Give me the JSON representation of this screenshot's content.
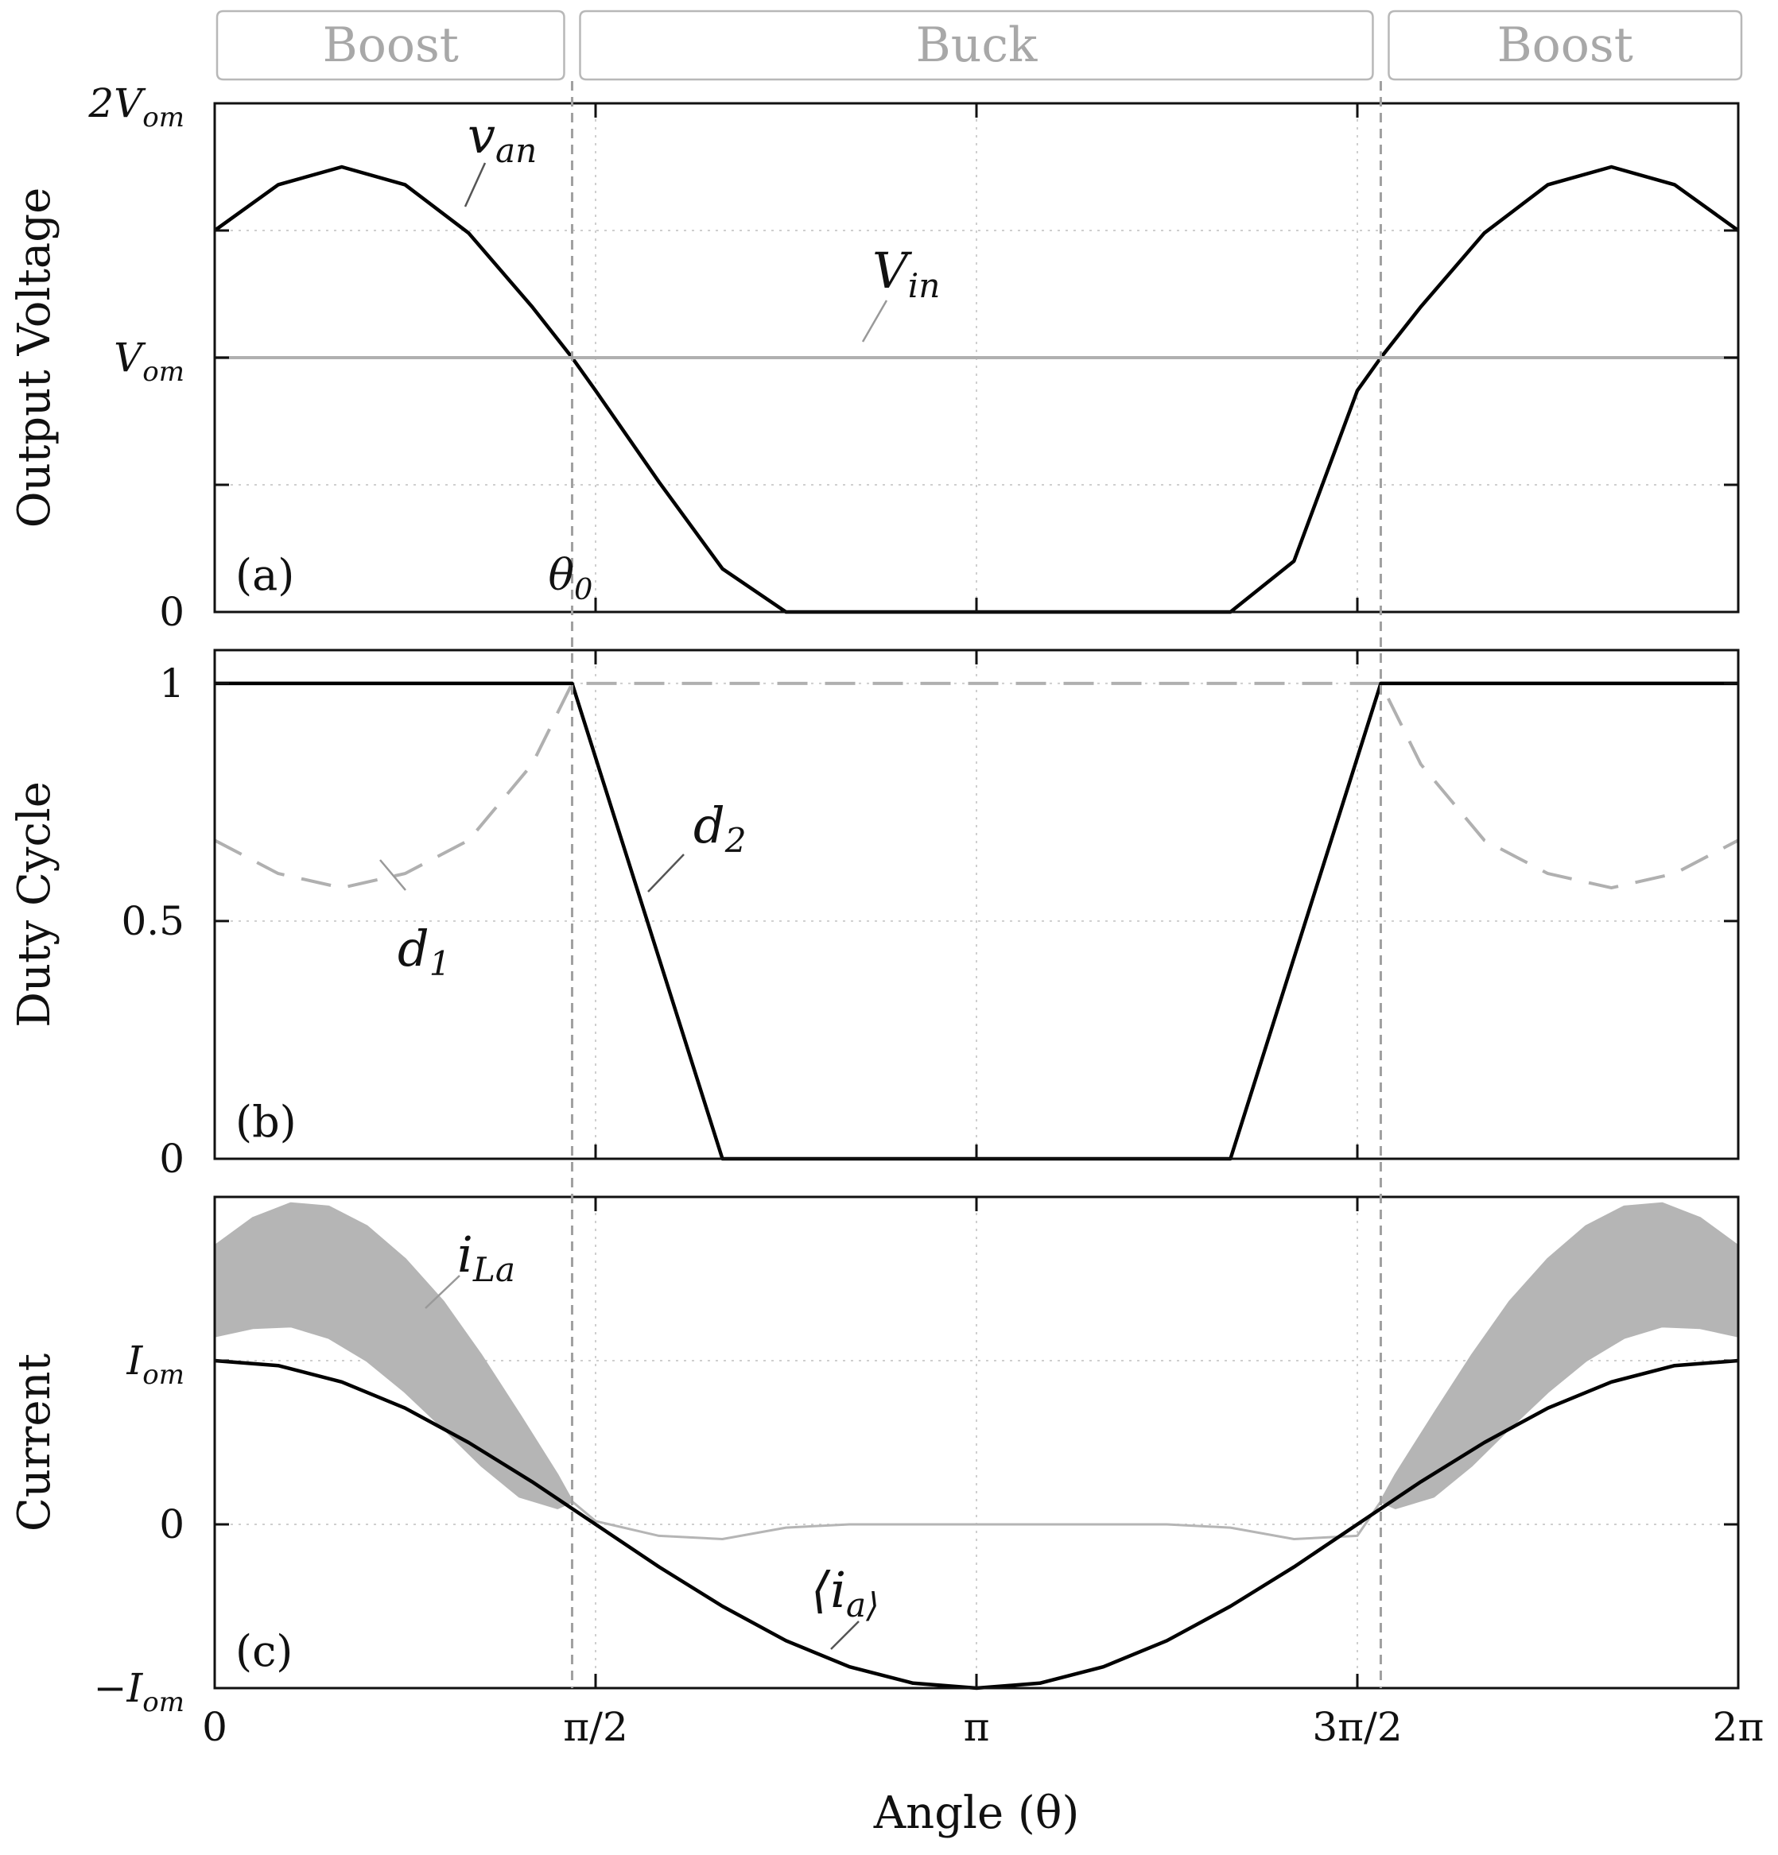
{
  "chart_data": {
    "type": "line",
    "x_axis": {
      "label": "Angle (θ)",
      "range": [
        0,
        6.2832
      ],
      "ticks": [
        0,
        1.5708,
        3.1416,
        4.7124,
        6.2832
      ],
      "tick_labels": [
        "0",
        "π/2",
        "π",
        "3π/2",
        "2π"
      ],
      "grid": true
    },
    "modes": [
      {
        "label": "Boost",
        "x_range": [
          0,
          1.474
        ]
      },
      {
        "label": "Buck",
        "x_range": [
          1.474,
          4.809
        ]
      },
      {
        "label": "Boost",
        "x_range": [
          4.809,
          6.2832
        ]
      }
    ],
    "vertical_marker": {
      "label": "θ0",
      "x": [
        1.474,
        4.809
      ]
    },
    "panels": [
      {
        "id": "a",
        "panel_label": "(a)",
        "ylabel": "Output Voltage",
        "ylim": [
          0,
          2
        ],
        "yticks": [
          0,
          0.5,
          1,
          1.5,
          2
        ],
        "ytick_labels": [
          "0",
          "",
          "V_om",
          "",
          "2V_om"
        ],
        "grid": true,
        "series": [
          {
            "name": "v_an",
            "color": "#000000",
            "style": "solid",
            "x": [
              0.0,
              0.262,
              0.524,
              0.785,
              1.047,
              1.309,
              1.474,
              1.571,
              1.833,
              2.094,
              2.356,
              2.618,
              2.88,
              3.142,
              3.403,
              3.665,
              3.927,
              4.189,
              4.451,
              4.712,
              4.809,
              4.974,
              5.236,
              5.498,
              5.76,
              6.021,
              6.283
            ],
            "y": [
              1.5,
              1.68,
              1.75,
              1.68,
              1.49,
              1.2,
              1.0,
              0.87,
              0.51,
              0.17,
              0.0,
              0.0,
              0.0,
              0.0,
              0.0,
              0.0,
              0.0,
              0.0,
              0.2,
              0.87,
              1.0,
              1.2,
              1.49,
              1.68,
              1.75,
              1.68,
              1.5
            ]
          },
          {
            "name": "V_in",
            "color": "#b0b0b0",
            "style": "solid",
            "x": [
              0,
              6.283
            ],
            "y": [
              1.0,
              1.0
            ]
          }
        ]
      },
      {
        "id": "b",
        "panel_label": "(b)",
        "ylabel": "Duty Cycle",
        "ylim": [
          0,
          1.0
        ],
        "yticks": [
          0,
          0.5,
          1
        ],
        "ytick_labels": [
          "0",
          "0.5",
          "1"
        ],
        "grid": true,
        "series": [
          {
            "name": "d_1",
            "color": "#b0b0b0",
            "style": "dashed",
            "x": [
              0.0,
              0.262,
              0.524,
              0.785,
              1.047,
              1.309,
              1.474,
              1.571,
              3.142,
              4.712,
              4.809,
              4.974,
              5.236,
              5.498,
              5.76,
              6.021,
              6.283
            ],
            "y": [
              0.67,
              0.6,
              0.57,
              0.6,
              0.67,
              0.83,
              1.0,
              1.0,
              1.0,
              1.0,
              1.0,
              0.83,
              0.67,
              0.6,
              0.57,
              0.6,
              0.67
            ]
          },
          {
            "name": "d_2",
            "color": "#000000",
            "style": "solid",
            "x": [
              0.0,
              1.474,
              2.094,
              4.189,
              4.809,
              6.283
            ],
            "y": [
              1.0,
              1.0,
              0.0,
              0.0,
              1.0,
              1.0
            ]
          }
        ]
      },
      {
        "id": "c",
        "panel_label": "(c)",
        "ylabel": "Current",
        "ylim": [
          -1.0,
          2.0
        ],
        "yticks": [
          -1,
          0,
          1
        ],
        "ytick_labels": [
          "−I_om",
          "0",
          "I_om"
        ],
        "grid": true,
        "series": [
          {
            "name": "i_La",
            "color": "#b5b5b5",
            "style": "band",
            "x": [
              0.0,
              0.157,
              0.314,
              0.471,
              0.628,
              0.785,
              0.942,
              1.1,
              1.257,
              1.414,
              1.474,
              1.571,
              1.832,
              2.094,
              2.356,
              2.618,
              3.142,
              3.665,
              3.927,
              4.189,
              4.451,
              4.712,
              4.809,
              4.869,
              5.027,
              5.184,
              5.341,
              5.498,
              5.655,
              5.812,
              5.969,
              6.126,
              6.283
            ],
            "upper": [
              1.7,
              1.87,
              1.96,
              1.94,
              1.82,
              1.62,
              1.36,
              1.03,
              0.67,
              0.3,
              0.14,
              0.02,
              -0.07,
              -0.09,
              -0.02,
              0.0,
              0.0,
              0.0,
              0.0,
              -0.02,
              -0.09,
              -0.07,
              0.14,
              0.3,
              0.67,
              1.03,
              1.36,
              1.62,
              1.82,
              1.94,
              1.96,
              1.87,
              1.7
            ],
            "lower": [
              1.15,
              1.2,
              1.21,
              1.14,
              1.0,
              0.81,
              0.59,
              0.36,
              0.17,
              0.1,
              0.14,
              0.02,
              -0.07,
              -0.09,
              -0.02,
              0.0,
              0.0,
              0.0,
              0.0,
              -0.02,
              -0.09,
              -0.07,
              0.14,
              0.1,
              0.17,
              0.36,
              0.59,
              0.81,
              1.0,
              1.14,
              1.21,
              1.2,
              1.15
            ]
          },
          {
            "name": "⟨i_a⟩",
            "color": "#000000",
            "style": "solid",
            "x": [
              0.0,
              0.262,
              0.524,
              0.785,
              1.047,
              1.309,
              1.571,
              1.833,
              2.094,
              2.356,
              2.618,
              2.88,
              3.142,
              3.403,
              3.665,
              3.927,
              4.189,
              4.451,
              4.712,
              4.974,
              5.236,
              5.498,
              5.76,
              6.021,
              6.283
            ],
            "y": [
              1.0,
              0.97,
              0.87,
              0.71,
              0.5,
              0.26,
              0.0,
              -0.26,
              -0.5,
              -0.71,
              -0.87,
              -0.97,
              -1.0,
              -0.97,
              -0.87,
              -0.71,
              -0.5,
              -0.26,
              0.0,
              0.26,
              0.5,
              0.71,
              0.87,
              0.97,
              1.0
            ]
          }
        ]
      }
    ]
  }
}
